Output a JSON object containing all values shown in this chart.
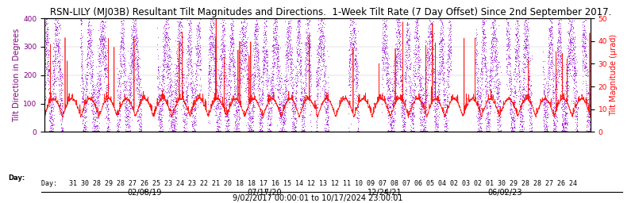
{
  "title": "RSN-LILY (MJ03B) Resultant Tilt Magnitudes and Directions.  1-Week Tilt Rate (7 Day Offset) Since 2nd September 2017.",
  "ylabel_left": "Tilt Direction in Degrees",
  "ylabel_right": "Tilt Magnitude (μrad)",
  "ylim_left": [
    0,
    400
  ],
  "ylim_right": [
    0,
    50
  ],
  "yticks_left": [
    0,
    100,
    200,
    300,
    400
  ],
  "yticks_right": [
    0,
    10,
    20,
    30,
    40,
    50
  ],
  "date_label_start": "9/02/2017 00:00:01",
  "date_label_end": "10/17/2024 23:00:01",
  "date_ticks": [
    "02/08/19",
    "07/17/20",
    "12/24/21",
    "06/02/23"
  ],
  "day_label": "Day:   31 30 28 29 28 27 26 25 23 24 23 22 21 20 18 18 17 16 15 14 12 13 12 11 10 09 07 08 07 06 05 04 02 03 02 01 30 29 28 28 27 26 24",
  "direction_color": "#9400D3",
  "magnitude_color": "#FF0000",
  "bg_color": "#FFFFFF",
  "title_color": "#000000",
  "title_fontsize": 8.5,
  "axis_label_fontsize": 7,
  "tick_fontsize": 6.5,
  "day_label_fontsize": 6,
  "date_tick_fontsize": 7,
  "grid": true,
  "figsize": [
    8.0,
    2.56
  ],
  "dpi": 100
}
